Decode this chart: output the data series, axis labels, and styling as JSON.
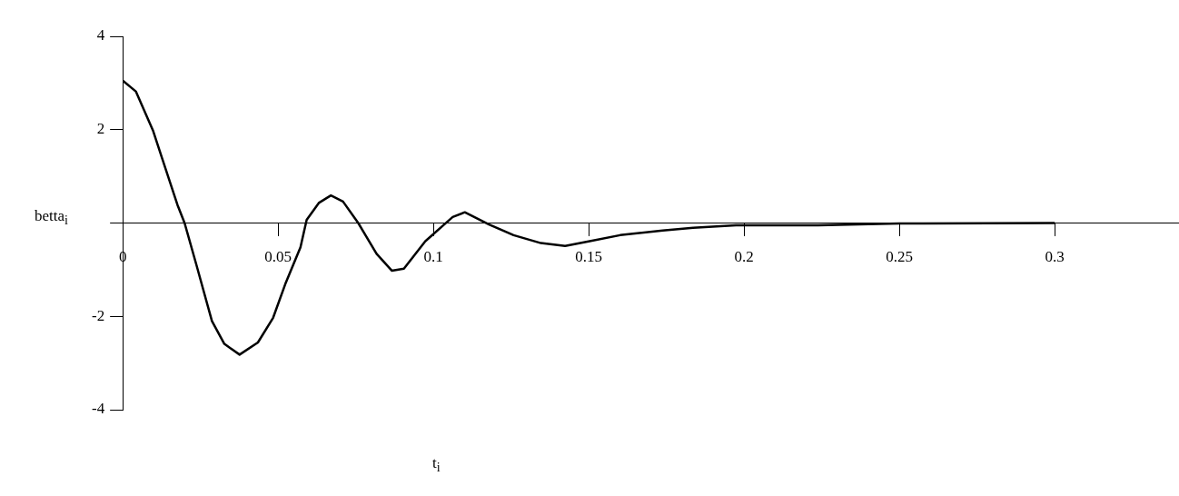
{
  "chart_data": {
    "type": "line",
    "xlabel": "t$_{i}$",
    "ylabel": "betta$_{i}$",
    "x": [
      0,
      0.0042,
      0.0098,
      0.0127,
      0.0176,
      0.0199,
      0.0238,
      0.0287,
      0.0327,
      0.0376,
      0.0435,
      0.0484,
      0.0523,
      0.0572,
      0.0592,
      0.0631,
      0.067,
      0.0709,
      0.0758,
      0.0817,
      0.0866,
      0.0905,
      0.0974,
      0.1062,
      0.1101,
      0.1179,
      0.1258,
      0.1346,
      0.1424,
      0.1503,
      0.1601,
      0.1738,
      0.1836,
      0.1974,
      0.2238,
      0.25,
      0.3
    ],
    "series": [
      {
        "color": "#000000",
        "values": [
          3.05,
          2.82,
          1.97,
          1.38,
          0.39,
          0,
          -0.92,
          -2.1,
          -2.59,
          -2.82,
          -2.56,
          -2.03,
          -1.31,
          -0.52,
          0.07,
          0.43,
          0.59,
          0.46,
          0,
          -0.66,
          -1.02,
          -0.98,
          -0.39,
          0.13,
          0.23,
          -0.03,
          -0.26,
          -0.43,
          -0.49,
          -0.39,
          -0.26,
          -0.16,
          -0.1,
          -0.05,
          -0.05,
          -0.01,
          0
        ]
      }
    ],
    "xlim": [
      0,
      0.34
    ],
    "ylim": [
      -4,
      4
    ],
    "xticks": [
      0,
      0.05,
      0.1,
      0.15,
      0.2,
      0.25,
      0.3
    ],
    "yticks": [
      -4,
      -2,
      {
        "value": 0,
        "label": null
      },
      2,
      4
    ],
    "grid": false,
    "marker": "none",
    "line_style": "solid"
  }
}
